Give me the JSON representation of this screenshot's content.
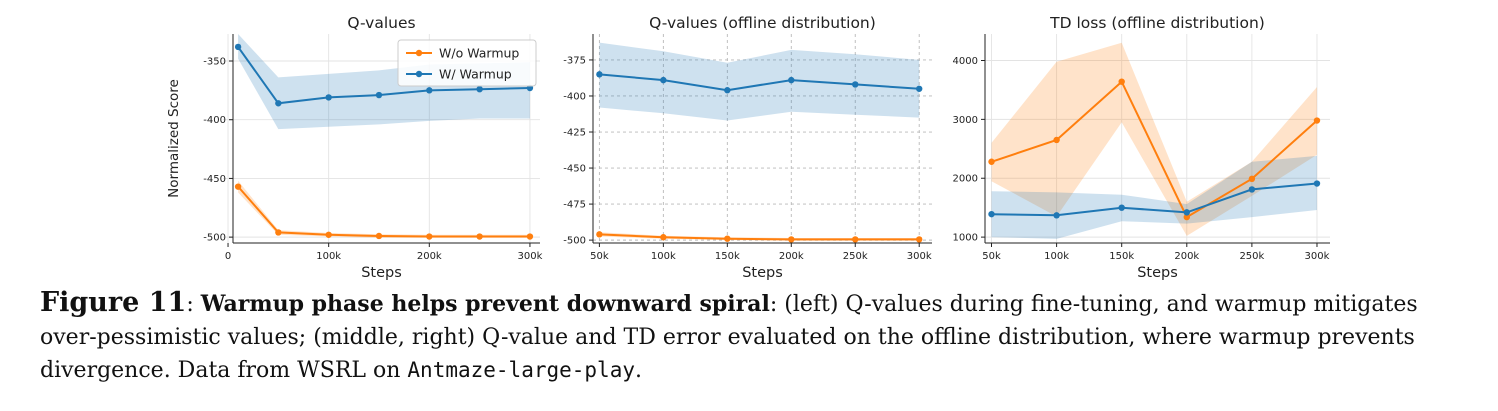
{
  "colors": {
    "orange": "#ff7f0e",
    "blue": "#1f77b4",
    "grid": "#e3e3e3",
    "axis": "#222222"
  },
  "chart_data": [
    {
      "type": "line",
      "title": "Q-values",
      "xlabel": "Steps",
      "ylabel": "Normalized Score",
      "xlim": [
        -5000,
        310000
      ],
      "ylim": [
        -505,
        -327
      ],
      "xticks": [
        0,
        100000,
        200000,
        300000
      ],
      "xtick_labels": [
        "0",
        "100k",
        "200k",
        "300k"
      ],
      "yticks": [
        -350,
        -400,
        -450,
        -500
      ],
      "ytick_labels": [
        "-350",
        "-400",
        "-450",
        "-500"
      ],
      "grid": "light",
      "grid_dashed": false,
      "legend": "top-right",
      "series": [
        {
          "name": "W/o Warmup",
          "color": "#ff7f0e",
          "x": [
            10000,
            50000,
            100000,
            150000,
            200000,
            250000,
            300000
          ],
          "y": [
            -457,
            -496,
            -498,
            -499,
            -499.5,
            -499.5,
            -499.5
          ],
          "lower": [
            -462,
            -498,
            -499.5,
            -500.5,
            -500.5,
            -500.5,
            -500.5
          ],
          "upper": [
            -452,
            -494,
            -496.5,
            -497.5,
            -498,
            -498,
            -498
          ]
        },
        {
          "name": "W/ Warmup",
          "color": "#1f77b4",
          "x": [
            10000,
            50000,
            100000,
            150000,
            200000,
            250000,
            300000
          ],
          "y": [
            -338,
            -386,
            -381,
            -379,
            -375,
            -374,
            -373
          ],
          "lower": [
            -348,
            -408,
            -406,
            -404,
            -401,
            -399,
            -399
          ],
          "upper": [
            -327,
            -364,
            -361,
            -358,
            -353,
            -352,
            -351
          ]
        }
      ]
    },
    {
      "type": "line",
      "title": "Q-values (offline distribution)",
      "xlabel": "Steps",
      "ylabel": "",
      "xlim": [
        45000,
        310000
      ],
      "ylim": [
        -502,
        -357
      ],
      "xticks": [
        50000,
        100000,
        150000,
        200000,
        250000,
        300000
      ],
      "xtick_labels": [
        "50k",
        "100k",
        "150k",
        "200k",
        "250k",
        "300k"
      ],
      "yticks": [
        -375,
        -400,
        -425,
        -450,
        -475,
        -500
      ],
      "ytick_labels": [
        "-375",
        "-400",
        "-425",
        "-450",
        "-475",
        "-500"
      ],
      "grid": "dashed",
      "grid_dashed": true,
      "series": [
        {
          "name": "W/o Warmup",
          "color": "#ff7f0e",
          "x": [
            50000,
            100000,
            150000,
            200000,
            250000,
            300000
          ],
          "y": [
            -496,
            -498,
            -499,
            -499.5,
            -499.5,
            -499.5
          ],
          "lower": [
            -497.5,
            -499,
            -500,
            -500.5,
            -500.5,
            -500.5
          ],
          "upper": [
            -494.5,
            -497,
            -498,
            -498.5,
            -498.5,
            -498.5
          ]
        },
        {
          "name": "W/ Warmup",
          "color": "#1f77b4",
          "x": [
            50000,
            100000,
            150000,
            200000,
            250000,
            300000
          ],
          "y": [
            -385,
            -389,
            -396,
            -389,
            -392,
            -395
          ],
          "lower": [
            -408,
            -412,
            -417,
            -411,
            -413,
            -415
          ],
          "upper": [
            -363,
            -369,
            -377,
            -368,
            -371,
            -375
          ]
        }
      ]
    },
    {
      "type": "line",
      "title": "TD loss (offline distribution)",
      "xlabel": "Steps",
      "ylabel": "",
      "xlim": [
        45000,
        310000
      ],
      "ylim": [
        900,
        4450
      ],
      "xticks": [
        50000,
        100000,
        150000,
        200000,
        250000,
        300000
      ],
      "xtick_labels": [
        "50k",
        "100k",
        "150k",
        "200k",
        "250k",
        "300k"
      ],
      "yticks": [
        1000,
        2000,
        3000,
        4000
      ],
      "ytick_labels": [
        "1000",
        "2000",
        "3000",
        "4000"
      ],
      "grid": "light",
      "grid_dashed": false,
      "series": [
        {
          "name": "W/o Warmup",
          "color": "#ff7f0e",
          "x": [
            50000,
            100000,
            150000,
            200000,
            250000,
            300000
          ],
          "y": [
            2280,
            2650,
            3640,
            1340,
            1990,
            2980
          ],
          "lower": [
            1950,
            1350,
            2950,
            1020,
            1700,
            2400
          ],
          "upper": [
            2600,
            3980,
            4300,
            1600,
            2280,
            3550
          ]
        },
        {
          "name": "W/ Warmup",
          "color": "#1f77b4",
          "x": [
            50000,
            100000,
            150000,
            200000,
            250000,
            300000
          ],
          "y": [
            1390,
            1370,
            1500,
            1420,
            1810,
            1910
          ],
          "lower": [
            1000,
            970,
            1270,
            1230,
            1340,
            1460
          ],
          "upper": [
            1780,
            1760,
            1720,
            1560,
            2280,
            2380
          ]
        }
      ]
    }
  ],
  "caption": {
    "label": "Figure 11",
    "colon": ": ",
    "title": "Warmup phase helps prevent downward spiral",
    "text": ": (left) Q-values during fine-tuning, and warmup mitigates over-pessimistic values; (middle, right) Q-value and TD error evaluated on the offline distribution, where warmup prevents divergence. Data from WSRL on ",
    "env": "Antmaze-large-play",
    "end": "."
  }
}
